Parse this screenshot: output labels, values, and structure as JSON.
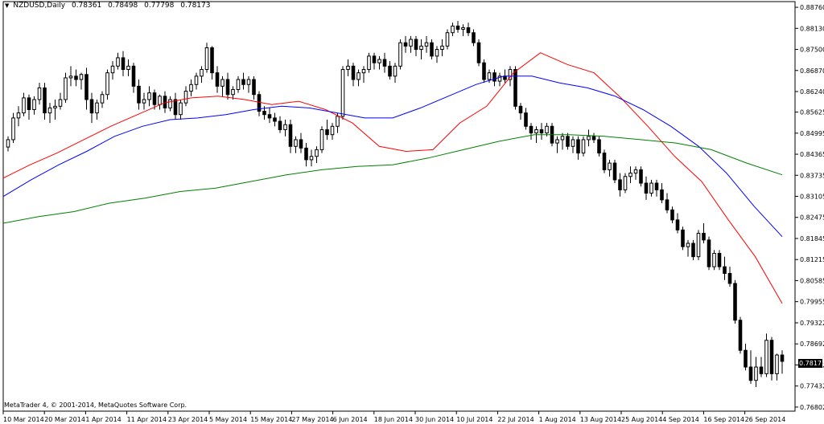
{
  "header": {
    "symbol": "NZDUSD,Daily",
    "ohlc": [
      "0.78361",
      "0.78498",
      "0.77798",
      "0.78173"
    ]
  },
  "footer": {
    "copyright": "MetaTrader 4, © 2001-2014, MetaQuotes Software Corp."
  },
  "chart_data": {
    "type": "candlestick",
    "title": "NZDUSD,Daily",
    "ylim": [
      0.7668,
      0.8893
    ],
    "y_ticks": [
      "0.88760",
      "0.88130",
      "0.87500",
      "0.86870",
      "0.86240",
      "0.85625",
      "0.84995",
      "0.84365",
      "0.83735",
      "0.83105",
      "0.82475",
      "0.81845",
      "0.81215",
      "0.80585",
      "0.79955",
      "0.79322",
      "0.78692",
      "0.78062",
      "0.77432",
      "0.76802"
    ],
    "x_tick_labels": [
      "10 Mar 2014",
      "20 Mar 2014",
      "1 Apr 2014",
      "11 Apr 2014",
      "23 Apr 2014",
      "5 May 2014",
      "15 May 2014",
      "27 May 2014",
      "6 Jun 2014",
      "18 Jun 2014",
      "30 Jun 2014",
      "10 Jul 2014",
      "22 Jul 2014",
      "1 Aug 2014",
      "13 Aug 2014",
      "25 Aug 2014",
      "4 Sep 2014",
      "16 Sep 2014",
      "26 Sep 2014"
    ],
    "last_price_label": "0.78173",
    "colors": {
      "bull_body": "#ffffff",
      "bear_body": "#000000",
      "ma_fast": "#ff0000",
      "ma_mid": "#0000ff",
      "ma_slow": "#008000"
    },
    "candles": [
      [
        "10 Mar 2014",
        0.8458,
        0.849,
        0.8445,
        0.848
      ],
      [
        "11 Mar 2014",
        0.848,
        0.856,
        0.847,
        0.8545
      ],
      [
        "12 Mar 2014",
        0.8545,
        0.858,
        0.852,
        0.856
      ],
      [
        "13 Mar 2014",
        0.856,
        0.862,
        0.855,
        0.8605
      ],
      [
        "14 Mar 2014",
        0.8605,
        0.8615,
        0.854,
        0.857
      ],
      [
        "17 Mar 2014",
        0.857,
        0.861,
        0.8555,
        0.86
      ],
      [
        "18 Mar 2014",
        0.86,
        0.865,
        0.8585,
        0.8635
      ],
      [
        "19 Mar 2014",
        0.8635,
        0.865,
        0.854,
        0.856
      ],
      [
        "20 Mar 2014",
        0.856,
        0.859,
        0.853,
        0.8575
      ],
      [
        "21 Mar 2014",
        0.8575,
        0.86,
        0.854,
        0.858
      ],
      [
        "24 Mar 2014",
        0.858,
        0.862,
        0.857,
        0.86
      ],
      [
        "25 Mar 2014",
        0.86,
        0.868,
        0.859,
        0.8665
      ],
      [
        "26 Mar 2014",
        0.8665,
        0.87,
        0.864,
        0.867
      ],
      [
        "27 Mar 2014",
        0.867,
        0.869,
        0.864,
        0.866
      ],
      [
        "28 Mar 2014",
        0.866,
        0.868,
        0.863,
        0.8675
      ],
      [
        "31 Mar 2014",
        0.8675,
        0.8695,
        0.857,
        0.86
      ],
      [
        "1 Apr 2014",
        0.86,
        0.862,
        0.853,
        0.856
      ],
      [
        "2 Apr 2014",
        0.856,
        0.86,
        0.854,
        0.859
      ],
      [
        "3 Apr 2014",
        0.859,
        0.8625,
        0.8575,
        0.8615
      ],
      [
        "4 Apr 2014",
        0.8615,
        0.869,
        0.86,
        0.868
      ],
      [
        "7 Apr 2014",
        0.868,
        0.8715,
        0.866,
        0.87
      ],
      [
        "8 Apr 2014",
        0.87,
        0.874,
        0.869,
        0.8725
      ],
      [
        "9 Apr 2014",
        0.8725,
        0.8745,
        0.867,
        0.869
      ],
      [
        "10 Apr 2014",
        0.869,
        0.872,
        0.867,
        0.87
      ],
      [
        "11 Apr 2014",
        0.87,
        0.871,
        0.862,
        0.864
      ],
      [
        "14 Apr 2014",
        0.864,
        0.866,
        0.857,
        0.859
      ],
      [
        "15 Apr 2014",
        0.859,
        0.862,
        0.857,
        0.86
      ],
      [
        "16 Apr 2014",
        0.86,
        0.864,
        0.858,
        0.862
      ],
      [
        "17 Apr 2014",
        0.862,
        0.863,
        0.857,
        0.8585
      ],
      [
        "18 Apr 2014",
        0.8585,
        0.8615,
        0.857,
        0.861
      ],
      [
        "22 Apr 2014",
        0.861,
        0.8625,
        0.856,
        0.8575
      ],
      [
        "23 Apr 2014",
        0.8575,
        0.861,
        0.8565,
        0.86
      ],
      [
        "24 Apr 2014",
        0.86,
        0.862,
        0.854,
        0.8555
      ],
      [
        "25 Apr 2014",
        0.8555,
        0.86,
        0.854,
        0.859
      ],
      [
        "28 Apr 2014",
        0.859,
        0.864,
        0.858,
        0.8625
      ],
      [
        "29 Apr 2014",
        0.8625,
        0.866,
        0.861,
        0.8645
      ],
      [
        "30 Apr 2014",
        0.8645,
        0.868,
        0.863,
        0.867
      ],
      [
        "1 May 2014",
        0.867,
        0.87,
        0.865,
        0.869
      ],
      [
        "2 May 2014",
        0.869,
        0.877,
        0.868,
        0.8755
      ],
      [
        "5 May 2014",
        0.8755,
        0.876,
        0.866,
        0.868
      ],
      [
        "6 May 2014",
        0.868,
        0.87,
        0.862,
        0.864
      ],
      [
        "7 May 2014",
        0.864,
        0.867,
        0.861,
        0.866
      ],
      [
        "8 May 2014",
        0.866,
        0.868,
        0.86,
        0.8615
      ],
      [
        "9 May 2014",
        0.8615,
        0.864,
        0.86,
        0.863
      ],
      [
        "12 May 2014",
        0.863,
        0.867,
        0.862,
        0.866
      ],
      [
        "13 May 2014",
        0.866,
        0.868,
        0.863,
        0.8645
      ],
      [
        "14 May 2014",
        0.8645,
        0.867,
        0.862,
        0.866
      ],
      [
        "15 May 2014",
        0.866,
        0.867,
        0.86,
        0.8615
      ],
      [
        "16 May 2014",
        0.8615,
        0.8625,
        0.855,
        0.8565
      ],
      [
        "19 May 2014",
        0.8565,
        0.858,
        0.854,
        0.8555
      ],
      [
        "20 May 2014",
        0.8555,
        0.8575,
        0.853,
        0.8545
      ],
      [
        "21 May 2014",
        0.8545,
        0.856,
        0.852,
        0.8535
      ],
      [
        "22 May 2014",
        0.8535,
        0.855,
        0.85,
        0.851
      ],
      [
        "23 May 2014",
        0.851,
        0.854,
        0.849,
        0.8525
      ],
      [
        "26 May 2014",
        0.8525,
        0.854,
        0.844,
        0.846
      ],
      [
        "27 May 2014",
        0.846,
        0.849,
        0.844,
        0.848
      ],
      [
        "28 May 2014",
        0.848,
        0.85,
        0.844,
        0.8455
      ],
      [
        "29 May 2014",
        0.8455,
        0.847,
        0.84,
        0.842
      ],
      [
        "30 May 2014",
        0.842,
        0.845,
        0.84,
        0.843
      ],
      [
        "2 Jun 2014",
        0.843,
        0.846,
        0.841,
        0.845
      ],
      [
        "3 Jun 2014",
        0.845,
        0.852,
        0.844,
        0.851
      ],
      [
        "4 Jun 2014",
        0.851,
        0.854,
        0.848,
        0.8495
      ],
      [
        "5 Jun 2014",
        0.8495,
        0.853,
        0.848,
        0.852
      ],
      [
        "6 Jun 2014",
        0.852,
        0.856,
        0.85,
        0.855
      ],
      [
        "9 Jun 2014",
        0.855,
        0.87,
        0.854,
        0.869
      ],
      [
        "10 Jun 2014",
        0.869,
        0.872,
        0.867,
        0.87
      ],
      [
        "11 Jun 2014",
        0.87,
        0.871,
        0.864,
        0.866
      ],
      [
        "12 Jun 2014",
        0.866,
        0.869,
        0.864,
        0.868
      ],
      [
        "13 Jun 2014",
        0.868,
        0.87,
        0.865,
        0.869
      ],
      [
        "16 Jun 2014",
        0.869,
        0.874,
        0.868,
        0.873
      ],
      [
        "17 Jun 2014",
        0.873,
        0.874,
        0.869,
        0.871
      ],
      [
        "18 Jun 2014",
        0.871,
        0.873,
        0.869,
        0.872
      ],
      [
        "19 Jun 2014",
        0.872,
        0.874,
        0.868,
        0.87
      ],
      [
        "20 Jun 2014",
        0.87,
        0.8715,
        0.866,
        0.867
      ],
      [
        "23 Jun 2014",
        0.867,
        0.871,
        0.865,
        0.87
      ],
      [
        "24 Jun 2014",
        0.87,
        0.878,
        0.869,
        0.877
      ],
      [
        "25 Jun 2014",
        0.877,
        0.879,
        0.874,
        0.876
      ],
      [
        "26 Jun 2014",
        0.876,
        0.879,
        0.874,
        0.878
      ],
      [
        "27 Jun 2014",
        0.878,
        0.879,
        0.873,
        0.875
      ],
      [
        "30 Jun 2014",
        0.875,
        0.878,
        0.872,
        0.876
      ],
      [
        "1 Jul 2014",
        0.876,
        0.879,
        0.874,
        0.877
      ],
      [
        "2 Jul 2014",
        0.877,
        0.878,
        0.872,
        0.873
      ],
      [
        "3 Jul 2014",
        0.873,
        0.876,
        0.871,
        0.875
      ],
      [
        "4 Jul 2014",
        0.875,
        0.878,
        0.873,
        0.876
      ],
      [
        "7 Jul 2014",
        0.876,
        0.881,
        0.875,
        0.88
      ],
      [
        "8 Jul 2014",
        0.88,
        0.883,
        0.879,
        0.882
      ],
      [
        "9 Jul 2014",
        0.882,
        0.8835,
        0.88,
        0.881
      ],
      [
        "10 Jul 2014",
        0.881,
        0.8825,
        0.879,
        0.8815
      ],
      [
        "11 Jul 2014",
        0.8815,
        0.883,
        0.879,
        0.88
      ],
      [
        "14 Jul 2014",
        0.88,
        0.881,
        0.876,
        0.877
      ],
      [
        "15 Jul 2014",
        0.877,
        0.878,
        0.87,
        0.871
      ],
      [
        "16 Jul 2014",
        0.871,
        0.872,
        0.865,
        0.866
      ],
      [
        "17 Jul 2014",
        0.866,
        0.869,
        0.865,
        0.868
      ],
      [
        "18 Jul 2014",
        0.868,
        0.869,
        0.864,
        0.8655
      ],
      [
        "21 Jul 2014",
        0.8655,
        0.868,
        0.864,
        0.867
      ],
      [
        "22 Jul 2014",
        0.867,
        0.869,
        0.865,
        0.866
      ],
      [
        "23 Jul 2014",
        0.866,
        0.87,
        0.864,
        0.869
      ],
      [
        "24 Jul 2014",
        0.869,
        0.87,
        0.857,
        0.858
      ],
      [
        "25 Jul 2014",
        0.858,
        0.859,
        0.854,
        0.856
      ],
      [
        "28 Jul 2014",
        0.856,
        0.8575,
        0.851,
        0.852
      ],
      [
        "29 Jul 2014",
        0.852,
        0.853,
        0.848,
        0.85
      ],
      [
        "30 Jul 2014",
        0.85,
        0.852,
        0.847,
        0.851
      ],
      [
        "31 Jul 2014",
        0.851,
        0.853,
        0.848,
        0.85
      ],
      [
        "1 Aug 2014",
        0.85,
        0.853,
        0.849,
        0.852
      ],
      [
        "4 Aug 2014",
        0.852,
        0.853,
        0.846,
        0.847
      ],
      [
        "5 Aug 2014",
        0.847,
        0.849,
        0.844,
        0.848
      ],
      [
        "6 Aug 2014",
        0.848,
        0.85,
        0.845,
        0.849
      ],
      [
        "7 Aug 2014",
        0.849,
        0.85,
        0.845,
        0.846
      ],
      [
        "8 Aug 2014",
        0.846,
        0.849,
        0.844,
        0.848
      ],
      [
        "11 Aug 2014",
        0.848,
        0.849,
        0.842,
        0.844
      ],
      [
        "12 Aug 2014",
        0.844,
        0.849,
        0.843,
        0.848
      ],
      [
        "13 Aug 2014",
        0.848,
        0.851,
        0.846,
        0.849
      ],
      [
        "14 Aug 2014",
        0.849,
        0.85,
        0.847,
        0.848
      ],
      [
        "15 Aug 2014",
        0.848,
        0.849,
        0.843,
        0.844
      ],
      [
        "18 Aug 2014",
        0.844,
        0.845,
        0.838,
        0.839
      ],
      [
        "19 Aug 2014",
        0.839,
        0.842,
        0.837,
        0.841
      ],
      [
        "20 Aug 2014",
        0.841,
        0.842,
        0.835,
        0.836
      ],
      [
        "21 Aug 2014",
        0.836,
        0.838,
        0.831,
        0.833
      ],
      [
        "22 Aug 2014",
        0.833,
        0.838,
        0.832,
        0.837
      ],
      [
        "25 Aug 2014",
        0.837,
        0.84,
        0.835,
        0.838
      ],
      [
        "26 Aug 2014",
        0.838,
        0.84,
        0.836,
        0.839
      ],
      [
        "27 Aug 2014",
        0.839,
        0.84,
        0.834,
        0.835
      ],
      [
        "28 Aug 2014",
        0.835,
        0.837,
        0.83,
        0.832
      ],
      [
        "29 Aug 2014",
        0.832,
        0.836,
        0.831,
        0.835
      ],
      [
        "1 Sep 2014",
        0.835,
        0.836,
        0.831,
        0.833
      ],
      [
        "2 Sep 2014",
        0.833,
        0.835,
        0.829,
        0.83
      ],
      [
        "3 Sep 2014",
        0.83,
        0.832,
        0.826,
        0.827
      ],
      [
        "4 Sep 2014",
        0.827,
        0.828,
        0.823,
        0.824
      ],
      [
        "5 Sep 2014",
        0.824,
        0.826,
        0.82,
        0.821
      ],
      [
        "8 Sep 2014",
        0.821,
        0.822,
        0.815,
        0.816
      ],
      [
        "9 Sep 2014",
        0.816,
        0.818,
        0.813,
        0.817
      ],
      [
        "10 Sep 2014",
        0.817,
        0.818,
        0.812,
        0.813
      ],
      [
        "11 Sep 2014",
        0.813,
        0.821,
        0.812,
        0.82
      ],
      [
        "12 Sep 2014",
        0.82,
        0.823,
        0.817,
        0.818
      ],
      [
        "15 Sep 2014",
        0.818,
        0.819,
        0.809,
        0.81
      ],
      [
        "16 Sep 2014",
        0.81,
        0.815,
        0.809,
        0.814
      ],
      [
        "17 Sep 2014",
        0.814,
        0.815,
        0.809,
        0.81
      ],
      [
        "18 Sep 2014",
        0.81,
        0.813,
        0.806,
        0.808
      ],
      [
        "19 Sep 2014",
        0.808,
        0.81,
        0.804,
        0.805
      ],
      [
        "22 Sep 2014",
        0.805,
        0.806,
        0.793,
        0.794
      ],
      [
        "23 Sep 2014",
        0.794,
        0.795,
        0.784,
        0.785
      ],
      [
        "24 Sep 2014",
        0.785,
        0.787,
        0.779,
        0.78
      ],
      [
        "25 Sep 2014",
        0.78,
        0.785,
        0.775,
        0.776
      ],
      [
        "26 Sep 2014",
        0.776,
        0.783,
        0.774,
        0.78
      ],
      [
        "29 Sep 2014",
        0.78,
        0.783,
        0.777,
        0.778
      ],
      [
        "30 Sep 2014",
        0.778,
        0.79,
        0.777,
        0.788
      ],
      [
        "1 Oct 2014",
        0.788,
        0.789,
        0.776,
        0.778
      ],
      [
        "2 Oct 2014",
        0.778,
        0.784,
        0.776,
        0.7836
      ],
      [
        "3 Oct 2014",
        0.7836,
        0.785,
        0.778,
        0.7817
      ]
    ],
    "moving_averages": [
      {
        "color": "#ff0000",
        "values": [
          0.8365,
          0.8405,
          0.844,
          0.848,
          0.852,
          0.8555,
          0.859,
          0.8605,
          0.861,
          0.86,
          0.8585,
          0.8595,
          0.857,
          0.853,
          0.846,
          0.8445,
          0.845,
          0.853,
          0.858,
          0.868,
          0.874,
          0.8705,
          0.868,
          0.8605,
          0.852,
          0.843,
          0.8355,
          0.824,
          0.813,
          0.799
        ]
      },
      {
        "color": "#0000ff",
        "values": [
          0.831,
          0.836,
          0.8405,
          0.8445,
          0.849,
          0.852,
          0.854,
          0.8545,
          0.8555,
          0.857,
          0.858,
          0.8575,
          0.856,
          0.8545,
          0.8545,
          0.8575,
          0.861,
          0.8645,
          0.867,
          0.867,
          0.865,
          0.8635,
          0.861,
          0.857,
          0.852,
          0.846,
          0.838,
          0.828,
          0.819
        ]
      },
      {
        "color": "#008000",
        "values": [
          0.823,
          0.825,
          0.8265,
          0.829,
          0.8305,
          0.8325,
          0.8335,
          0.8355,
          0.8375,
          0.839,
          0.84,
          0.8405,
          0.8425,
          0.845,
          0.8475,
          0.8495,
          0.8495,
          0.849,
          0.848,
          0.847,
          0.845,
          0.841,
          0.8375
        ]
      }
    ]
  }
}
